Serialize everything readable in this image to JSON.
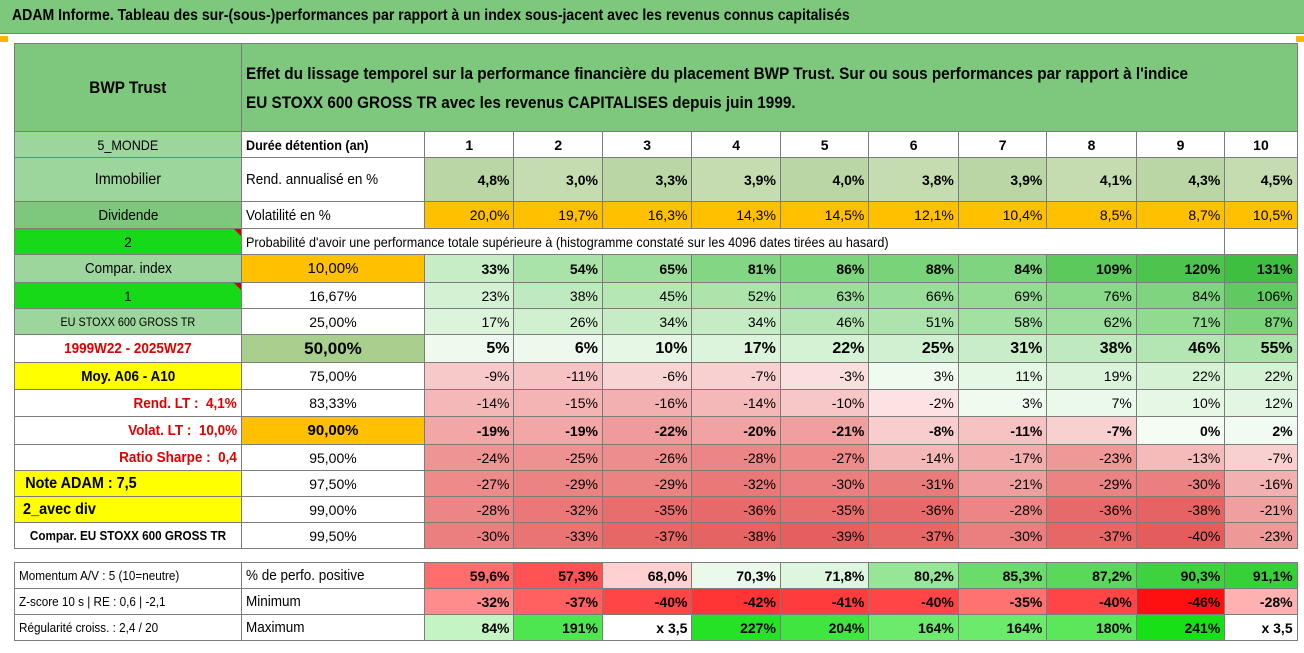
{
  "title": "ADAM Informe. Tableau des sur-(sous-)performances par rapport à un index sous-jacent avec les revenus connus capitalisés",
  "header": {
    "fund": "BWP Trust",
    "description_line1": "Effet du lissage temporel sur la performance financière du placement BWP Trust. Sur ou sous performances par rapport à l'indice",
    "description_line2": "EU STOXX 600 GROSS TR avec les revenus CAPITALISES depuis juin 1999."
  },
  "side": {
    "region": "5_MONDE",
    "sector": "Immobilier",
    "dividend": "Dividende",
    "two": "2",
    "compar_index": "Compar. index",
    "one": "1",
    "index_name": "EU STOXX 600 GROSS TR",
    "period": "1999W22 - 2025W27",
    "moy": "Moy. A06 - A10",
    "rend_lt_label": "Rend. LT :",
    "rend_lt_value": "4,1%",
    "volat_lt_label": "Volat. LT :",
    "volat_lt_value": "10,0%",
    "sharpe_label": "Ratio Sharpe :",
    "sharpe_value": "0,4",
    "note": "Note ADAM : 7,5",
    "avec_div": "2_avec div",
    "compar_full": "Compar. EU STOXX 600 GROSS TR",
    "momentum": "Momentum A/V : 5 (10=neutre)",
    "zscore": "Z-score 10 s | RE : 0,6 | -2,1",
    "regularite": "Régularité croiss. : 2,4 / 20"
  },
  "columns": {
    "label": "Durée détention (an)",
    "years": [
      "1",
      "2",
      "3",
      "4",
      "5",
      "6",
      "7",
      "8",
      "9",
      "10"
    ]
  },
  "rend_annualise": {
    "label": "Rend. annualisé en %",
    "values": [
      "4,8%",
      "3,0%",
      "3,3%",
      "3,9%",
      "4,0%",
      "3,8%",
      "3,9%",
      "4,1%",
      "4,3%",
      "4,5%"
    ]
  },
  "volatilite": {
    "label": "Volatilité en %",
    "values": [
      "20,0%",
      "19,7%",
      "16,3%",
      "14,3%",
      "14,5%",
      "12,1%",
      "10,4%",
      "8,5%",
      "8,7%",
      "10,5%"
    ]
  },
  "probability_heading": "Probabilité d'avoir une performance totale supérieure à (histogramme constaté sur les 4096 dates tirées au hasard)",
  "prob_rows": [
    {
      "pct": "10,00%",
      "values": [
        "33%",
        "54%",
        "65%",
        "81%",
        "86%",
        "88%",
        "84%",
        "109%",
        "120%",
        "131%"
      ]
    },
    {
      "pct": "16,67%",
      "values": [
        "23%",
        "38%",
        "45%",
        "52%",
        "63%",
        "66%",
        "69%",
        "76%",
        "84%",
        "106%"
      ]
    },
    {
      "pct": "25,00%",
      "values": [
        "17%",
        "26%",
        "34%",
        "34%",
        "46%",
        "51%",
        "58%",
        "62%",
        "71%",
        "87%"
      ]
    },
    {
      "pct": "50,00%",
      "values": [
        "5%",
        "6%",
        "10%",
        "17%",
        "22%",
        "25%",
        "31%",
        "38%",
        "46%",
        "55%"
      ]
    },
    {
      "pct": "75,00%",
      "values": [
        "-9%",
        "-11%",
        "-6%",
        "-7%",
        "-3%",
        "3%",
        "11%",
        "19%",
        "22%",
        "22%"
      ]
    },
    {
      "pct": "83,33%",
      "values": [
        "-14%",
        "-15%",
        "-16%",
        "-14%",
        "-10%",
        "-2%",
        "3%",
        "7%",
        "10%",
        "12%"
      ]
    },
    {
      "pct": "90,00%",
      "values": [
        "-19%",
        "-19%",
        "-22%",
        "-20%",
        "-21%",
        "-8%",
        "-11%",
        "-7%",
        "0%",
        "2%"
      ]
    },
    {
      "pct": "95,00%",
      "values": [
        "-24%",
        "-25%",
        "-26%",
        "-28%",
        "-27%",
        "-14%",
        "-17%",
        "-23%",
        "-13%",
        "-7%"
      ]
    },
    {
      "pct": "97,50%",
      "values": [
        "-27%",
        "-29%",
        "-29%",
        "-32%",
        "-30%",
        "-31%",
        "-21%",
        "-29%",
        "-30%",
        "-16%"
      ]
    },
    {
      "pct": "99,00%",
      "values": [
        "-28%",
        "-32%",
        "-35%",
        "-36%",
        "-35%",
        "-36%",
        "-28%",
        "-36%",
        "-38%",
        "-21%"
      ]
    },
    {
      "pct": "99,50%",
      "values": [
        "-30%",
        "-33%",
        "-37%",
        "-38%",
        "-39%",
        "-37%",
        "-30%",
        "-37%",
        "-40%",
        "-23%"
      ]
    }
  ],
  "perf_positive": {
    "label": "% de perfo. positive",
    "values": [
      "59,6%",
      "57,3%",
      "68,0%",
      "70,3%",
      "71,8%",
      "80,2%",
      "85,3%",
      "87,2%",
      "90,3%",
      "91,1%"
    ]
  },
  "minimum": {
    "label": "Minimum",
    "values": [
      "-32%",
      "-37%",
      "-40%",
      "-42%",
      "-41%",
      "-40%",
      "-35%",
      "-40%",
      "-46%",
      "-28%"
    ]
  },
  "maximum": {
    "label": "Maximum",
    "values": [
      "84%",
      "191%",
      "x 3,5",
      "227%",
      "204%",
      "164%",
      "164%",
      "180%",
      "241%",
      "x 3,5"
    ]
  },
  "colors": {
    "header_green": "#7ec87e",
    "bright_green": "#17d917",
    "yellow": "#ffff00",
    "orange": "#ffc000",
    "red_text": "#e00000"
  }
}
